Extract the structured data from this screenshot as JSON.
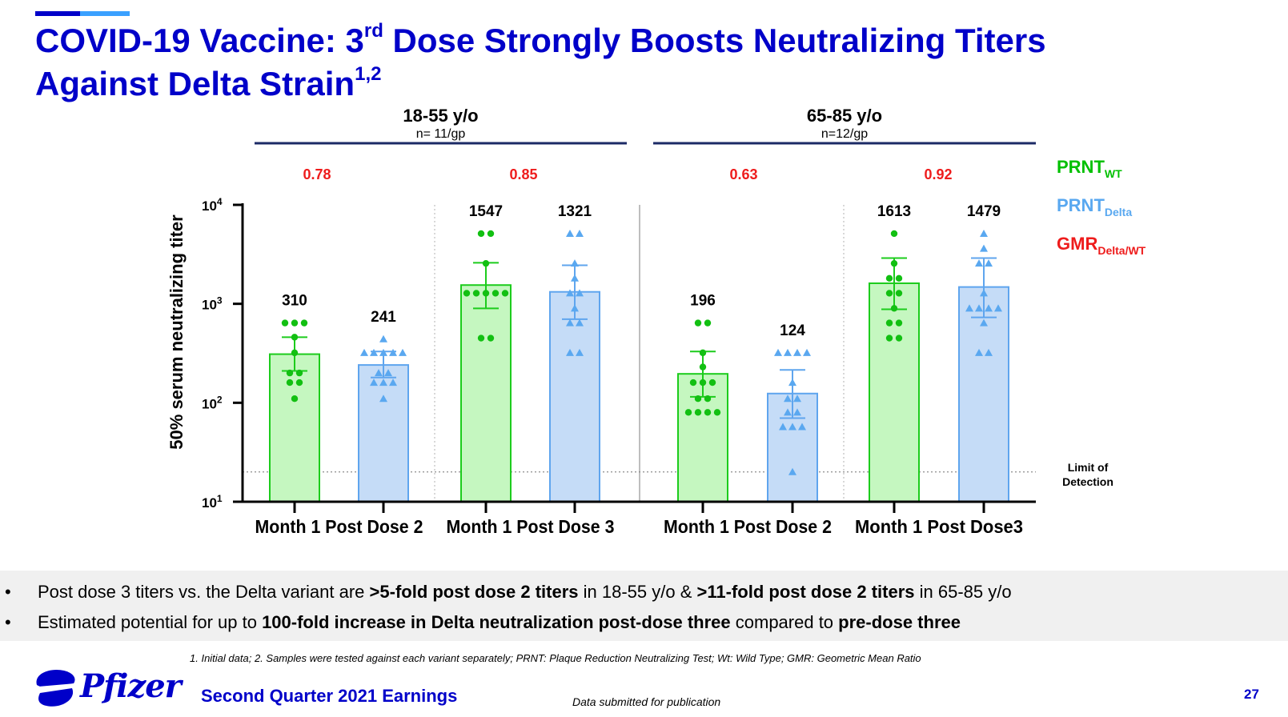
{
  "slide": {
    "title_line1_pre": "COVID-19 Vaccine: 3",
    "title_line1_sup": "rd",
    "title_line1_post": " Dose Strongly Boosts Neutralizing Titers",
    "title_line2": "Against Delta Strain",
    "title_line2_sup": "1,2",
    "page_number": "27",
    "colors": {
      "brand_blue": "#0000c9",
      "accent_light_blue": "#3aa0ff"
    }
  },
  "chart_data": {
    "type": "bar",
    "yscale": "log",
    "ylim": [
      10,
      10000
    ],
    "ylabel": "50% serum neutralizing titer",
    "yticks": [
      {
        "value": 10000,
        "base": "10",
        "exp": "4"
      },
      {
        "value": 1000,
        "base": "10",
        "exp": "3"
      },
      {
        "value": 100,
        "base": "10",
        "exp": "2"
      },
      {
        "value": 10,
        "base": "10",
        "exp": "1"
      }
    ],
    "limit_of_detection": {
      "value": 20,
      "label_line1": "Limit of",
      "label_line2": "Detection"
    },
    "groups": [
      {
        "label": "18-55 y/o",
        "n_label": "n= 11/gp"
      },
      {
        "label": "65-85 y/o",
        "n_label": "n=12/gp"
      }
    ],
    "legend": [
      {
        "name": "PRNT",
        "sub": "WT",
        "color": "#00c000"
      },
      {
        "name": "PRNT",
        "sub": "Delta",
        "color": "#59a8f0"
      },
      {
        "name": "GMR",
        "sub": "Delta/WT",
        "color": "#ee1c1c"
      }
    ],
    "x_tick_labels": [
      "Month 1 Post Dose 2",
      "Month 1 Post Dose 3",
      "Month 1 Post Dose 2",
      "Month 1 Post  Dose3"
    ],
    "gmr_values": [
      "0.78",
      "0.85",
      "0.63",
      "0.92"
    ],
    "series_colors": {
      "wt": {
        "fill": "#c5f7c0",
        "stroke": "#1ccc1c",
        "marker": "#12c012"
      },
      "delta": {
        "fill": "#c5dcf7",
        "stroke": "#5fa5ee",
        "marker": "#5aa8f0"
      }
    },
    "bars": [
      {
        "series": "WT",
        "gmt": 310,
        "label": "310",
        "ci": [
          210,
          460
        ],
        "points": [
          110,
          160,
          160,
          200,
          200,
          320,
          460,
          640,
          640,
          640
        ]
      },
      {
        "series": "Delta",
        "gmt": 241,
        "label": "241",
        "ci": [
          180,
          330
        ],
        "points": [
          110,
          160,
          160,
          160,
          200,
          200,
          320,
          320,
          320,
          320,
          320,
          440
        ]
      },
      {
        "series": "WT",
        "gmt": 1547,
        "label": "1547",
        "ci": [
          900,
          2600
        ],
        "points": [
          450,
          450,
          1280,
          1280,
          1280,
          1280,
          1280,
          2560,
          5120,
          5120
        ]
      },
      {
        "series": "Delta",
        "gmt": 1321,
        "label": "1321",
        "ci": [
          700,
          2450
        ],
        "points": [
          320,
          320,
          640,
          640,
          900,
          1280,
          1280,
          1810,
          2560,
          5120,
          5120
        ]
      },
      {
        "series": "WT",
        "gmt": 196,
        "label": "196",
        "ci": [
          115,
          330
        ],
        "points": [
          80,
          80,
          80,
          80,
          110,
          110,
          160,
          160,
          160,
          230,
          320,
          640,
          640
        ]
      },
      {
        "series": "Delta",
        "gmt": 124,
        "label": "124",
        "ci": [
          70,
          215
        ],
        "points": [
          20,
          57,
          57,
          57,
          80,
          80,
          110,
          110,
          160,
          320,
          320,
          320,
          320
        ]
      },
      {
        "series": "WT",
        "gmt": 1613,
        "label": "1613",
        "ci": [
          880,
          2900
        ],
        "points": [
          450,
          450,
          640,
          640,
          900,
          1280,
          1280,
          1810,
          1810,
          2560,
          5120
        ]
      },
      {
        "series": "Delta",
        "gmt": 1479,
        "label": "1479",
        "ci": [
          730,
          2900
        ],
        "points": [
          320,
          320,
          640,
          900,
          900,
          900,
          900,
          1280,
          2560,
          2560,
          3620,
          5120
        ]
      }
    ]
  },
  "bullets": [
    [
      {
        "text": "Post dose 3 titers vs. the Delta variant are ",
        "bold": false
      },
      {
        "text": ">5-fold post dose 2 titers",
        "bold": true
      },
      {
        "text": " in 18-55 y/o &  ",
        "bold": false
      },
      {
        "text": ">11-fold post dose 2 titers",
        "bold": true
      },
      {
        "text": " in 65-85 y/o",
        "bold": false
      }
    ],
    [
      {
        "text": "Estimated potential for up to ",
        "bold": false
      },
      {
        "text": "100-fold increase in Delta neutralization post-dose three",
        "bold": true
      },
      {
        "text": " compared to ",
        "bold": false
      },
      {
        "text": "pre-dose three",
        "bold": true
      }
    ]
  ],
  "bullet_marker": "•",
  "footnote": "1. Initial data; 2. Samples were tested against each variant separately; PRNT: Plaque Reduction Neutralizing Test; Wt: Wild Type; GMR: Geometric Mean Ratio",
  "footer": {
    "logo_text": "Pfizer",
    "earnings_label": "Second Quarter 2021 Earnings",
    "submitted_label": "Data submitted for publication"
  }
}
